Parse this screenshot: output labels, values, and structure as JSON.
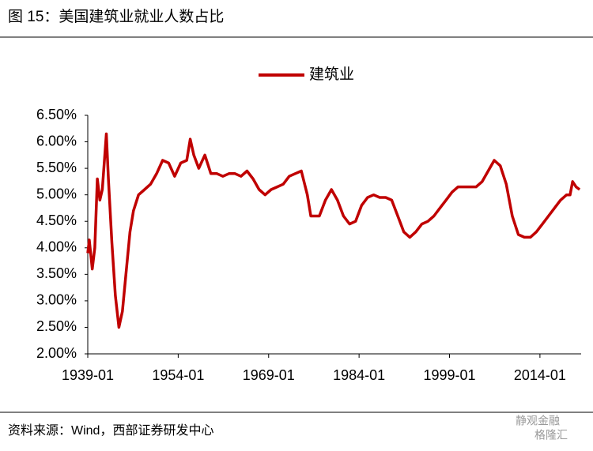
{
  "chart_data": {
    "type": "line",
    "title": "图 15：美国建筑业就业人数占比",
    "source": "资料来源：Wind，西部证券研发中心",
    "watermark": [
      "静观金融",
      "格隆汇"
    ],
    "x": [
      "1939-01",
      "1939-04",
      "1939-10",
      "1940-03",
      "1940-08",
      "1941-01",
      "1941-06",
      "1942-02",
      "1942-06",
      "1943-01",
      "1943-08",
      "1944-03",
      "1944-10",
      "1945-06",
      "1946-01",
      "1946-08",
      "1947-06",
      "1948-06",
      "1949-06",
      "1950-06",
      "1951-06",
      "1952-06",
      "1953-06",
      "1954-06",
      "1955-06",
      "1956-01",
      "1956-08",
      "1957-06",
      "1958-06",
      "1959-06",
      "1960-06",
      "1961-06",
      "1962-06",
      "1963-06",
      "1964-06",
      "1965-06",
      "1966-06",
      "1967-06",
      "1968-06",
      "1969-06",
      "1970-06",
      "1971-06",
      "1972-06",
      "1973-06",
      "1974-06",
      "1975-06",
      "1976-01",
      "1977-06",
      "1978-06",
      "1979-06",
      "1980-06",
      "1981-06",
      "1982-06",
      "1983-06",
      "1984-06",
      "1985-06",
      "1986-06",
      "1987-06",
      "1988-06",
      "1989-06",
      "1990-06",
      "1991-06",
      "1992-06",
      "1993-06",
      "1994-06",
      "1995-06",
      "1996-06",
      "1997-06",
      "1998-06",
      "1999-06",
      "2000-06",
      "2001-06",
      "2002-06",
      "2003-06",
      "2004-06",
      "2005-06",
      "2006-06",
      "2007-06",
      "2008-06",
      "2009-06",
      "2010-06",
      "2011-06",
      "2012-06",
      "2013-06",
      "2014-06",
      "2015-06",
      "2016-06",
      "2017-06",
      "2018-06",
      "2019-01",
      "2019-06",
      "2020-01",
      "2020-08"
    ],
    "series": [
      {
        "name": "建筑业",
        "color": "#c00000",
        "values": [
          3.9,
          4.15,
          3.6,
          4.0,
          5.3,
          4.9,
          5.1,
          6.15,
          5.3,
          4.1,
          3.1,
          2.5,
          2.8,
          3.6,
          4.3,
          4.7,
          5.0,
          5.1,
          5.2,
          5.4,
          5.65,
          5.6,
          5.35,
          5.6,
          5.65,
          6.05,
          5.75,
          5.5,
          5.75,
          5.4,
          5.4,
          5.35,
          5.4,
          5.4,
          5.35,
          5.45,
          5.3,
          5.1,
          5.0,
          5.1,
          5.15,
          5.2,
          5.35,
          5.4,
          5.45,
          5.0,
          4.6,
          4.6,
          4.9,
          5.1,
          4.9,
          4.6,
          4.45,
          4.5,
          4.8,
          4.95,
          5.0,
          4.95,
          4.95,
          4.9,
          4.6,
          4.3,
          4.2,
          4.3,
          4.45,
          4.5,
          4.6,
          4.75,
          4.9,
          5.05,
          5.15,
          5.15,
          5.15,
          5.15,
          5.25,
          5.45,
          5.65,
          5.55,
          5.2,
          4.6,
          4.25,
          4.2,
          4.2,
          4.3,
          4.45,
          4.6,
          4.75,
          4.9,
          5.0,
          5.0,
          5.25,
          5.15,
          5.1
        ]
      }
    ],
    "xlim": [
      "1939-01",
      "2020-11"
    ],
    "xticks": [
      "1939-01",
      "1954-01",
      "1969-01",
      "1984-01",
      "1999-01",
      "2014-01"
    ],
    "ylim": [
      2.0,
      6.5
    ],
    "yticks": [
      {
        "value": 2.0,
        "label": "2.00%"
      },
      {
        "value": 2.5,
        "label": "2.50%"
      },
      {
        "value": 3.0,
        "label": "3.00%"
      },
      {
        "value": 3.5,
        "label": "3.50%"
      },
      {
        "value": 4.0,
        "label": "4.00%"
      },
      {
        "value": 4.5,
        "label": "4.50%"
      },
      {
        "value": 5.0,
        "label": "5.00%"
      },
      {
        "value": 5.5,
        "label": "5.50%"
      },
      {
        "value": 6.0,
        "label": "6.00%"
      },
      {
        "value": 6.5,
        "label": "6.50%"
      }
    ],
    "grid": false,
    "legend": "top"
  }
}
